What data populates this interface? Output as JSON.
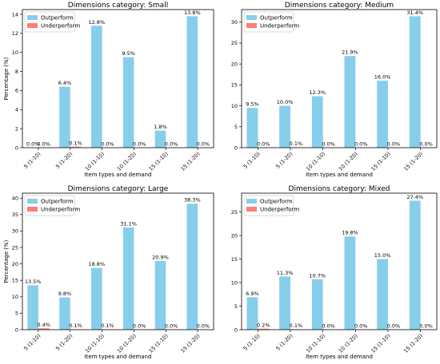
{
  "chart_data": [
    {
      "type": "bar",
      "title": "Dimensions category: Small",
      "xlabel": "Item types and demand",
      "ylabel": "Percentage (%)",
      "categories": [
        "5 (1-10)",
        "5 (1-20)",
        "10 (1-10)",
        "10 (1-20)",
        "15 (1-10)",
        "15 (1-20)"
      ],
      "ylim": [
        0,
        14.5
      ],
      "yticks": [
        0,
        2,
        4,
        6,
        8,
        10,
        12,
        14
      ],
      "legend_position": "top-left",
      "series": [
        {
          "name": "Outperform",
          "color": "#87CEEB",
          "values": [
            0.0,
            6.4,
            12.8,
            9.5,
            1.8,
            13.8
          ],
          "labels": [
            "0.0%",
            "6.4%",
            "12.8%",
            "9.5%",
            "1.8%",
            "13.8%"
          ]
        },
        {
          "name": "Underperform",
          "color": "#FA8072",
          "values": [
            0.0,
            0.1,
            0.0,
            0.0,
            0.0,
            0.0
          ],
          "labels": [
            "0.0%",
            "0.1%",
            "0.0%",
            "0.0%",
            "0.0%",
            "0.0%"
          ]
        }
      ]
    },
    {
      "type": "bar",
      "title": "Dimensions category: Medium",
      "xlabel": "Item types and demand",
      "ylabel": "",
      "categories": [
        "5 (1-10)",
        "5 (1-20)",
        "10 (1-10)",
        "10 (1-20)",
        "15 (1-10)",
        "15 (1-20)"
      ],
      "ylim": [
        0,
        33
      ],
      "yticks": [
        0,
        5,
        10,
        15,
        20,
        25,
        30
      ],
      "legend_position": "top-left",
      "series": [
        {
          "name": "Outperform",
          "color": "#87CEEB",
          "values": [
            9.5,
            10.0,
            12.3,
            21.9,
            16.0,
            31.4
          ],
          "labels": [
            "9.5%",
            "10.0%",
            "12.3%",
            "21.9%",
            "16.0%",
            "31.4%"
          ]
        },
        {
          "name": "Underperform",
          "color": "#FA8072",
          "values": [
            0.0,
            0.1,
            0.0,
            0.0,
            0.0,
            0.0
          ],
          "labels": [
            "0.0%",
            "0.1%",
            "0.0%",
            "0.0%",
            "0.0%",
            "0.0%"
          ]
        }
      ]
    },
    {
      "type": "bar",
      "title": "Dimensions category: Large",
      "xlabel": "Item types and demand",
      "ylabel": "Percentage (%)",
      "categories": [
        "5 (1-10)",
        "5 (1-20)",
        "10 (1-10)",
        "10 (1-20)",
        "15 (1-10)",
        "15 (1-20)"
      ],
      "ylim": [
        0,
        41.5
      ],
      "yticks": [
        0,
        5,
        10,
        15,
        20,
        25,
        30,
        35,
        40
      ],
      "legend_position": "top-left",
      "series": [
        {
          "name": "Outperform",
          "color": "#87CEEB",
          "values": [
            13.5,
            9.8,
            18.8,
            31.1,
            20.9,
            38.3
          ],
          "labels": [
            "13.5%",
            "9.8%",
            "18.8%",
            "31.1%",
            "20.9%",
            "38.3%"
          ]
        },
        {
          "name": "Underperform",
          "color": "#FA8072",
          "values": [
            0.4,
            0.1,
            0.1,
            0.0,
            0.0,
            0.0
          ],
          "labels": [
            "0.4%",
            "0.1%",
            "0.1%",
            "0.0%",
            "0.0%",
            "0.0%"
          ]
        }
      ]
    },
    {
      "type": "bar",
      "title": "Dimensions category: Mixed",
      "xlabel": "Item types and demand",
      "ylabel": "",
      "categories": [
        "5 (1-10)",
        "5 (1-20)",
        "10 (1-10)",
        "10 (1-20)",
        "15 (1-10)",
        "15 (1-20)"
      ],
      "ylim": [
        0,
        29
      ],
      "yticks": [
        0,
        5,
        10,
        15,
        20,
        25
      ],
      "legend_position": "top-left",
      "series": [
        {
          "name": "Outperform",
          "color": "#87CEEB",
          "values": [
            6.9,
            11.3,
            10.7,
            19.8,
            15.0,
            27.4
          ],
          "labels": [
            "6.9%",
            "11.3%",
            "10.7%",
            "19.8%",
            "15.0%",
            "27.4%"
          ]
        },
        {
          "name": "Underperform",
          "color": "#FA8072",
          "values": [
            0.2,
            0.1,
            0.0,
            0.0,
            0.0,
            0.0
          ],
          "labels": [
            "0.2%",
            "0.1%",
            "0.0%",
            "0.0%",
            "0.0%",
            "0.0%"
          ]
        }
      ]
    }
  ]
}
